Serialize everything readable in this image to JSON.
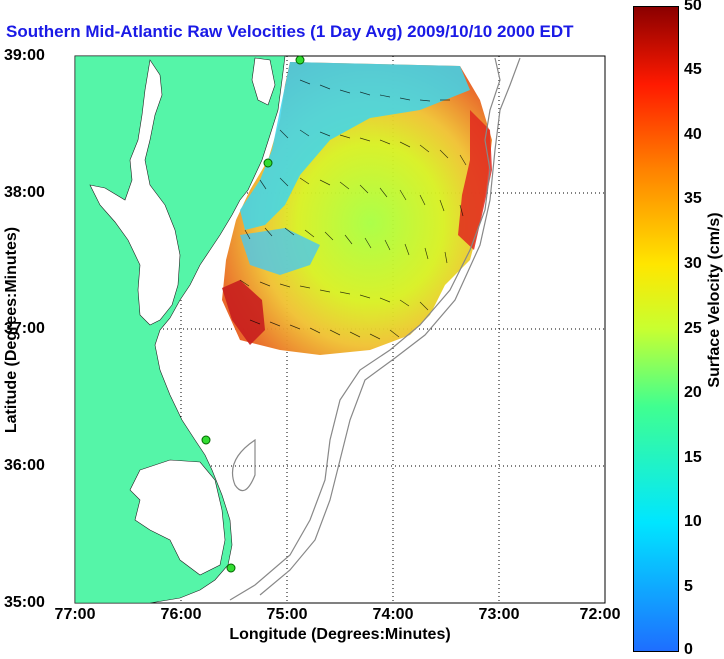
{
  "title": "Southern Mid-Atlantic Raw Velocities (1 Day Avg) 2009/10/10 2000 EDT",
  "xlabel": "Longitude (Degrees:Minutes)",
  "ylabel": "Latitude (Degrees:Minutes)",
  "colorbar_label": "Surface Velocity (cm/s)",
  "x_ticks": [
    "77:00",
    "76:00",
    "75:00",
    "74:00",
    "73:00",
    "72:00"
  ],
  "y_ticks": [
    "39:00",
    "38:00",
    "37:00",
    "36:00",
    "35:00"
  ],
  "colorbar_ticks": [
    "50",
    "45",
    "40",
    "35",
    "30",
    "25",
    "20",
    "15",
    "10",
    "5",
    "0"
  ],
  "colors": {
    "land": "#55f5a8",
    "water": "#ffffff",
    "title": "#1a1ae6",
    "station": "#33dd33"
  }
}
